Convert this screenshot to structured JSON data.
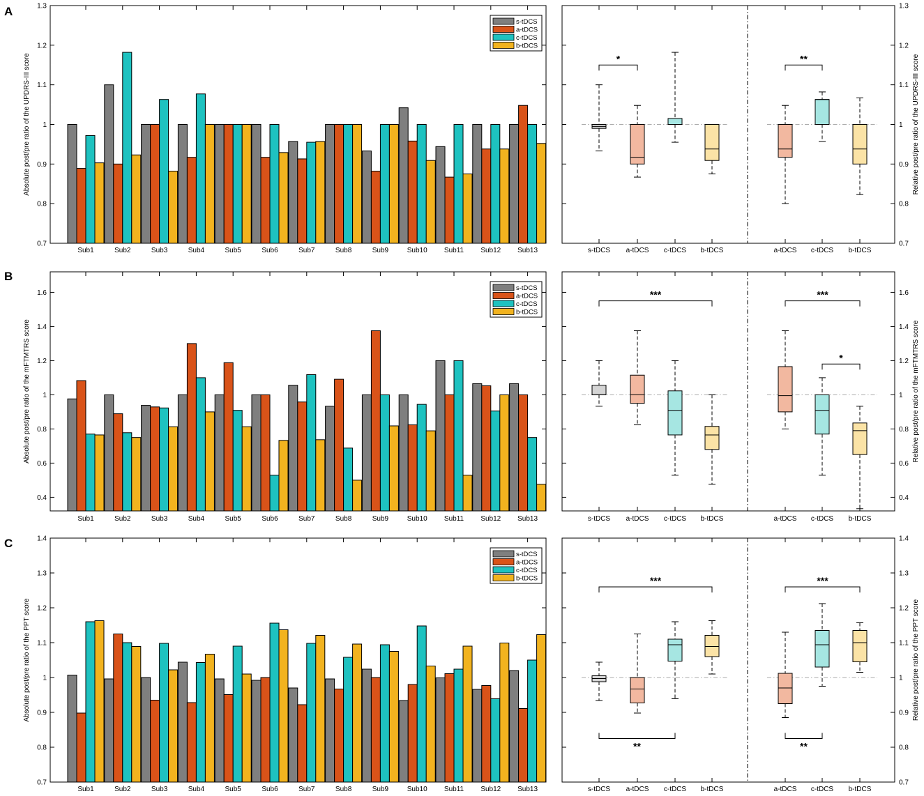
{
  "colors": {
    "s": "#7f7f7f",
    "a": "#d95319",
    "c": "#1ec2c0",
    "b": "#f2b31f",
    "s_box": "#d4d4d4",
    "a_box": "#f2b8a0",
    "c_box": "#a6e6e2",
    "b_box": "#fbe3a6"
  },
  "chart_data": [
    {
      "panel": "A",
      "type": "bar",
      "ylabel": "Absolute post/pre ratio of the UPDRS-III score",
      "right_ylabel": "Relative post/pre ratio of the UPDRS-III score",
      "ylim": [
        0.7,
        1.3
      ],
      "yticks": [
        "0.7",
        "0.8",
        "0.9",
        "1",
        "1.1",
        "1.2",
        "1.3"
      ],
      "categories": [
        "Sub1",
        "Sub2",
        "Sub3",
        "Sub4",
        "Sub5",
        "Sub6",
        "Sub7",
        "Sub8",
        "Sub9",
        "Sub10",
        "Sub11",
        "Sub12",
        "Sub13"
      ],
      "legend": [
        "s-tDCS",
        "a-tDCS",
        "c-tDCS",
        "b-tDCS"
      ],
      "series": [
        {
          "name": "s-tDCS",
          "values": [
            1.0,
            1.1,
            1.0,
            1.0,
            1.0,
            1.0,
            0.957,
            1.0,
            0.933,
            1.042,
            0.944,
            1.0,
            1.0
          ]
        },
        {
          "name": "a-tDCS",
          "values": [
            0.889,
            0.9,
            1.0,
            0.917,
            1.0,
            0.917,
            0.913,
            1.0,
            0.882,
            0.958,
            0.867,
            0.938,
            1.048
          ]
        },
        {
          "name": "c-tDCS",
          "values": [
            0.972,
            1.182,
            1.063,
            1.077,
            1.0,
            1.0,
            0.955,
            1.0,
            1.0,
            1.0,
            1.0,
            1.0,
            1.0
          ]
        },
        {
          "name": "b-tDCS",
          "values": [
            0.903,
            0.923,
            0.882,
            1.0,
            1.0,
            0.929,
            0.957,
            1.0,
            1.0,
            0.909,
            0.875,
            0.938,
            0.952
          ]
        }
      ],
      "box_abs": {
        "categories": [
          "s-tDCS",
          "a-tDCS",
          "c-tDCS",
          "b-tDCS"
        ],
        "boxes": [
          {
            "whislo": 0.933,
            "q1": 0.99,
            "med": 0.995,
            "q3": 1.0,
            "whishi": 1.1
          },
          {
            "whislo": 0.867,
            "q1": 0.9,
            "med": 0.917,
            "q3": 1.0,
            "whishi": 1.048
          },
          {
            "whislo": 0.955,
            "q1": 1.0,
            "med": 1.0,
            "q3": 1.015,
            "whishi": 1.182
          },
          {
            "whislo": 0.875,
            "q1": 0.909,
            "med": 0.938,
            "q3": 1.0,
            "whishi": 1.0
          }
        ]
      },
      "box_rel": {
        "categories": [
          "a-tDCS",
          "c-tDCS",
          "b-tDCS"
        ],
        "boxes": [
          {
            "whislo": 0.8,
            "q1": 0.917,
            "med": 0.938,
            "q3": 1.0,
            "whishi": 1.048
          },
          {
            "whislo": 0.957,
            "q1": 1.0,
            "med": 1.063,
            "q3": 1.063,
            "whishi": 1.082
          },
          {
            "whislo": 0.823,
            "q1": 0.9,
            "med": 0.938,
            "q3": 1.0,
            "whishi": 1.067
          }
        ]
      },
      "sig": [
        {
          "group": "abs",
          "from": 0,
          "to": 1,
          "label": "*",
          "pos": "top",
          "y": 1.15
        },
        {
          "group": "rel",
          "from": 0,
          "to": 1,
          "label": "**",
          "pos": "top",
          "y": 1.15
        }
      ]
    },
    {
      "panel": "B",
      "type": "bar",
      "ylabel": "Absolute post/pre ratio of the mFTMTRS score",
      "right_ylabel": "Relative post/pre ratio of the mFTMTRS score",
      "ylim": [
        0.32,
        1.72
      ],
      "yticks": [
        "0.4",
        "0.6",
        "0.8",
        "1",
        "1.2",
        "1.4",
        "1.6"
      ],
      "categories": [
        "Sub1",
        "Sub2",
        "Sub3",
        "Sub4",
        "Sub5",
        "Sub6",
        "Sub7",
        "Sub8",
        "Sub9",
        "Sub10",
        "Sub11",
        "Sub12",
        "Sub13"
      ],
      "legend": [
        "s-tDCS",
        "a-tDCS",
        "c-tDCS",
        "b-tDCS"
      ],
      "series": [
        {
          "name": "s-tDCS",
          "values": [
            0.976,
            1.0,
            0.938,
            1.0,
            1.0,
            1.0,
            1.056,
            0.933,
            1.0,
            1.0,
            1.2,
            1.065,
            1.065
          ]
        },
        {
          "name": "a-tDCS",
          "values": [
            1.083,
            0.889,
            0.929,
            1.3,
            1.188,
            1.0,
            0.958,
            1.091,
            1.375,
            0.824,
            1.0,
            1.053,
            1.0
          ]
        },
        {
          "name": "c-tDCS",
          "values": [
            0.77,
            0.778,
            0.923,
            1.1,
            0.909,
            0.529,
            1.118,
            0.688,
            1.0,
            0.944,
            1.2,
            0.905,
            0.75
          ]
        },
        {
          "name": "b-tDCS",
          "values": [
            0.765,
            0.75,
            0.813,
            0.9,
            0.813,
            0.733,
            0.737,
            0.5,
            0.818,
            0.789,
            0.529,
            1.0,
            0.476
          ]
        }
      ],
      "box_abs": {
        "categories": [
          "s-tDCS",
          "a-tDCS",
          "c-tDCS",
          "b-tDCS"
        ],
        "boxes": [
          {
            "whislo": 0.933,
            "q1": 1.0,
            "med": 1.0,
            "q3": 1.056,
            "whishi": 1.2
          },
          {
            "whislo": 0.824,
            "q1": 0.95,
            "med": 1.0,
            "q3": 1.115,
            "whishi": 1.375
          },
          {
            "whislo": 0.529,
            "q1": 0.765,
            "med": 0.909,
            "q3": 1.023,
            "whishi": 1.2
          },
          {
            "whislo": 0.476,
            "q1": 0.68,
            "med": 0.765,
            "q3": 0.815,
            "whishi": 1.0
          }
        ]
      },
      "box_rel": {
        "categories": [
          "a-tDCS",
          "c-tDCS",
          "b-tDCS"
        ],
        "boxes": [
          {
            "whislo": 0.8,
            "q1": 0.9,
            "med": 0.995,
            "q3": 1.165,
            "whishi": 1.375
          },
          {
            "whislo": 0.529,
            "q1": 0.77,
            "med": 0.909,
            "q3": 1.0,
            "whishi": 1.1
          },
          {
            "whislo": 0.333,
            "q1": 0.65,
            "med": 0.79,
            "q3": 0.835,
            "whishi": 0.933
          }
        ]
      },
      "sig": [
        {
          "group": "abs",
          "from": 0,
          "to": 3,
          "label": "***",
          "pos": "top",
          "y": 1.55
        },
        {
          "group": "rel",
          "from": 0,
          "to": 2,
          "label": "***",
          "pos": "top",
          "y": 1.55
        },
        {
          "group": "rel",
          "from": 1,
          "to": 2,
          "label": "*",
          "pos": "top",
          "y": 1.18
        }
      ]
    },
    {
      "panel": "C",
      "type": "bar",
      "ylabel": "Absolute post/pre ratio of the PPT score",
      "right_ylabel": "Relative post/pre ratio of the PPT score",
      "ylim": [
        0.7,
        1.4
      ],
      "yticks": [
        "0.7",
        "0.8",
        "0.9",
        "1",
        "1.1",
        "1.2",
        "1.3",
        "1.4"
      ],
      "categories": [
        "Sub1",
        "Sub2",
        "Sub3",
        "Sub4",
        "Sub5",
        "Sub6",
        "Sub7",
        "Sub8",
        "Sub9",
        "Sub10",
        "Sub11",
        "Sub12",
        "Sub13"
      ],
      "legend": [
        "s-tDCS",
        "a-tDCS",
        "c-tDCS",
        "b-tDCS"
      ],
      "series": [
        {
          "name": "s-tDCS",
          "values": [
            1.007,
            0.996,
            1.0,
            1.044,
            0.996,
            0.992,
            0.97,
            0.996,
            1.024,
            0.934,
            0.999,
            0.966,
            1.02
          ]
        },
        {
          "name": "a-tDCS",
          "values": [
            0.898,
            1.125,
            0.935,
            0.928,
            0.951,
            1.0,
            0.922,
            0.967,
            1.0,
            0.98,
            1.011,
            0.977,
            0.911
          ]
        },
        {
          "name": "c-tDCS",
          "values": [
            1.16,
            1.1,
            1.098,
            1.043,
            1.09,
            1.156,
            1.098,
            1.058,
            1.094,
            1.148,
            1.024,
            0.939,
            1.05
          ]
        },
        {
          "name": "b-tDCS",
          "values": [
            1.163,
            1.089,
            1.022,
            1.067,
            1.01,
            1.137,
            1.121,
            1.096,
            1.075,
            1.033,
            1.09,
            1.099,
            1.123
          ]
        }
      ],
      "box_abs": {
        "categories": [
          "s-tDCS",
          "a-tDCS",
          "c-tDCS",
          "b-tDCS"
        ],
        "boxes": [
          {
            "whislo": 0.934,
            "q1": 0.988,
            "med": 0.997,
            "q3": 1.005,
            "whishi": 1.044
          },
          {
            "whislo": 0.898,
            "q1": 0.927,
            "med": 0.967,
            "q3": 1.0,
            "whishi": 1.125
          },
          {
            "whislo": 0.939,
            "q1": 1.047,
            "med": 1.094,
            "q3": 1.11,
            "whishi": 1.16
          },
          {
            "whislo": 1.01,
            "q1": 1.06,
            "med": 1.089,
            "q3": 1.121,
            "whishi": 1.163
          }
        ]
      },
      "box_rel": {
        "categories": [
          "a-tDCS",
          "c-tDCS",
          "b-tDCS"
        ],
        "boxes": [
          {
            "whislo": 0.885,
            "q1": 0.925,
            "med": 0.97,
            "q3": 1.012,
            "whishi": 1.13
          },
          {
            "whislo": 0.975,
            "q1": 1.03,
            "med": 1.094,
            "q3": 1.135,
            "whishi": 1.212
          },
          {
            "whislo": 1.015,
            "q1": 1.045,
            "med": 1.1,
            "q3": 1.135,
            "whishi": 1.157
          }
        ]
      },
      "sig": [
        {
          "group": "abs",
          "from": 0,
          "to": 3,
          "label": "***",
          "pos": "top",
          "y": 1.26
        },
        {
          "group": "abs",
          "from": 0,
          "to": 2,
          "label": "**",
          "pos": "bottom",
          "y": 0.825
        },
        {
          "group": "rel",
          "from": 0,
          "to": 2,
          "label": "***",
          "pos": "top",
          "y": 1.26
        },
        {
          "group": "rel",
          "from": 0,
          "to": 1,
          "label": "**",
          "pos": "bottom",
          "y": 0.825
        }
      ]
    }
  ]
}
